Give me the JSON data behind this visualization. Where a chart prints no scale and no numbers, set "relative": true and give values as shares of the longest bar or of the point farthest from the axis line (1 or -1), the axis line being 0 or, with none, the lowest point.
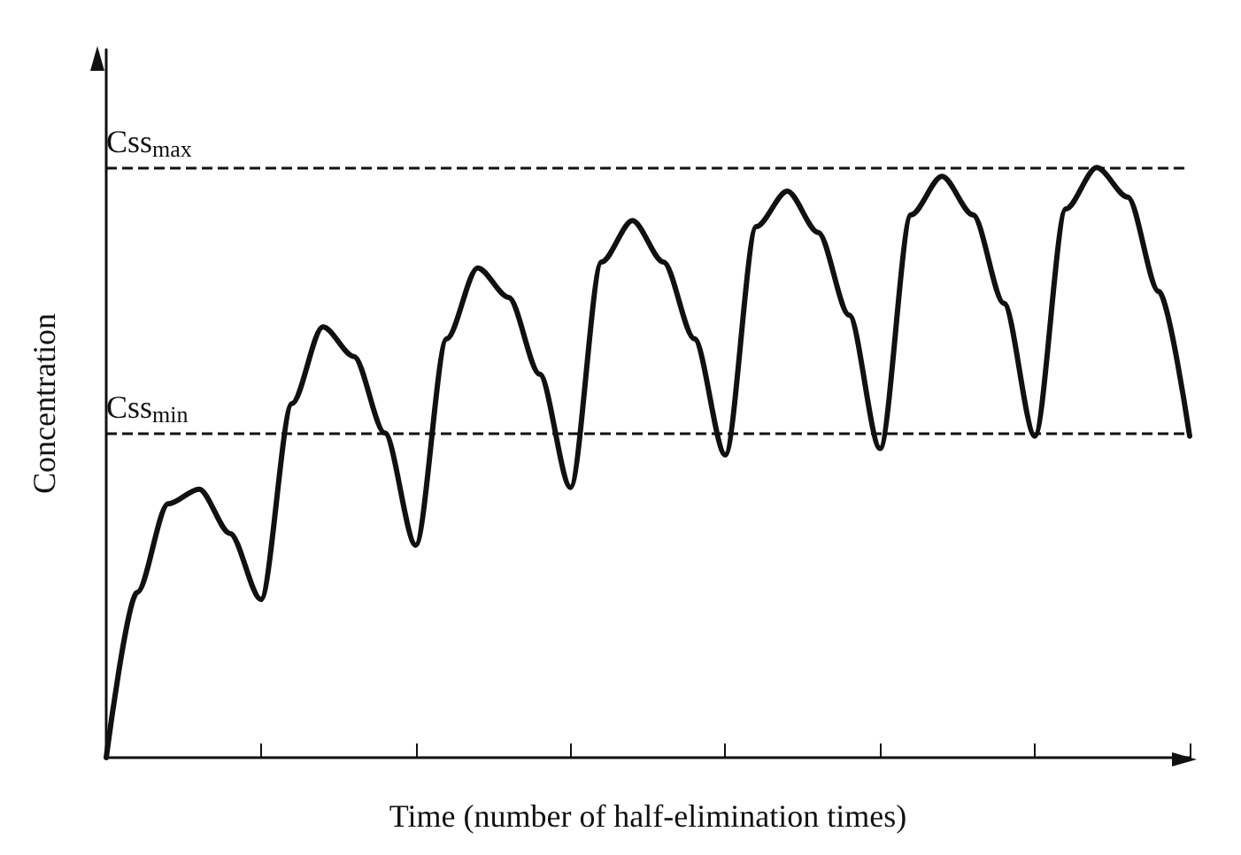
{
  "chart_data": {
    "type": "line",
    "relative": true,
    "xlabel": "Time (number of half-elimination times)",
    "ylabel": "Concentration",
    "categories": [
      null,
      null,
      null,
      null,
      null,
      null,
      null,
      null,
      null,
      null,
      null,
      null,
      null,
      null,
      null,
      null,
      null,
      null,
      null,
      null,
      null,
      null,
      null,
      null,
      null,
      null,
      null,
      null,
      null,
      null,
      null,
      null,
      null,
      null,
      null,
      null
    ],
    "series": [
      {
        "color": "#111111",
        "values": [
          0,
          0.28,
          0.43,
          0.455,
          0.38,
          0.268,
          0.6,
          0.73,
          0.68,
          0.55,
          0.36,
          0.71,
          0.83,
          0.78,
          0.65,
          0.458,
          0.84,
          0.91,
          0.84,
          0.71,
          0.513,
          0.9,
          0.96,
          0.89,
          0.75,
          0.524,
          0.92,
          0.985,
          0.92,
          0.77,
          0.545,
          0.93,
          1.0,
          0.95,
          0.79,
          0.545
        ]
      }
    ],
    "ref_lines": [
      {
        "axis": "y",
        "value": 1.0,
        "label": "Css$_{max}$",
        "color": "#111111",
        "line_style": "dashed"
      },
      {
        "axis": "y",
        "value": 0.545,
        "label": "Css$_{min}$",
        "color": "#111111",
        "line_style": "dashed"
      }
    ],
    "marker": "none",
    "line_style": "solid",
    "grid": false
  }
}
